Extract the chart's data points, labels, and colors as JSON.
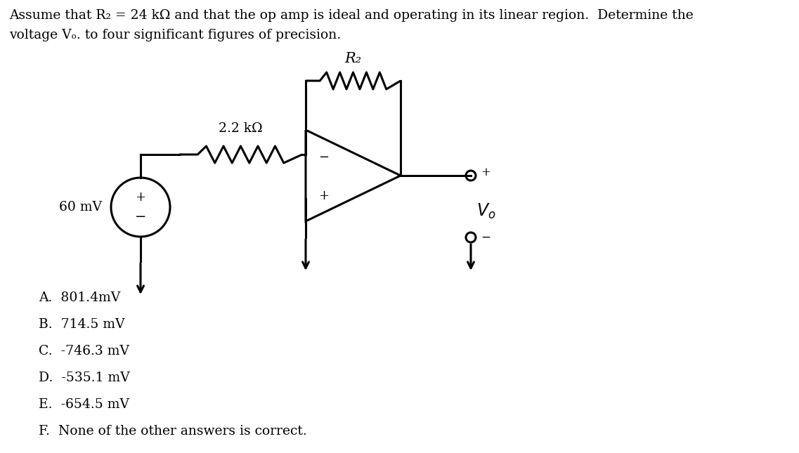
{
  "title_line1": "Assume that R₂ = 24 kΩ and that the op amp is ideal and operating in its linear region.  Determine the",
  "title_line2": "voltage Vₒ. to four significant figures of precision.",
  "bg_color": "#ffffff",
  "text_color": "#000000",
  "choices": [
    "A.  801.4mV",
    "B.  714.5 mV",
    "C.  -746.3 mV",
    "D.  -535.1 mV",
    "E.  -654.5 mV",
    "F.  None of the other answers is correct."
  ],
  "lw": 2.2,
  "resistor_label_1": "2.2 kΩ",
  "resistor_label_2": "R₂",
  "source_label": "60 mV",
  "vo_label": "Vₒ",
  "figw": 11.37,
  "figh": 6.45,
  "dpi": 100
}
